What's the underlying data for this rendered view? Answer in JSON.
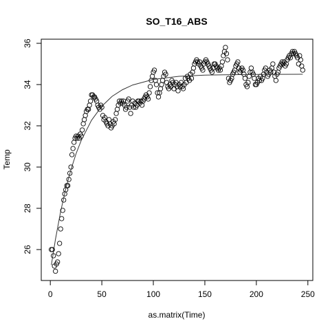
{
  "chart_data": {
    "type": "scatter",
    "title": "SO_T16_ABS",
    "x_label": "as.matrix(Time)",
    "y_label": "Temp",
    "xlim": [
      -8.8,
      254.8
    ],
    "ylim": [
      24.5,
      36.2
    ],
    "xticks": [
      0,
      50,
      100,
      150,
      200,
      250
    ],
    "yticks": [
      26,
      28,
      30,
      32,
      34,
      36
    ],
    "series": [
      {
        "mode": "points",
        "color": "#000000",
        "x": [
          1,
          2,
          3,
          4,
          5,
          6,
          7,
          8,
          9,
          10,
          11,
          12,
          13,
          14,
          15,
          16,
          17,
          18,
          19,
          20,
          21,
          22,
          23,
          24,
          25,
          26,
          27,
          28,
          29,
          30,
          31,
          32,
          33,
          34,
          35,
          36,
          37,
          38,
          39,
          40,
          41,
          42,
          43,
          44,
          45,
          46,
          47,
          48,
          49,
          50,
          51,
          52,
          53,
          54,
          55,
          56,
          57,
          58,
          59,
          60,
          61,
          62,
          63,
          64,
          65,
          66,
          67,
          68,
          69,
          70,
          71,
          72,
          73,
          74,
          75,
          76,
          77,
          78,
          79,
          80,
          81,
          82,
          83,
          84,
          85,
          86,
          87,
          88,
          89,
          90,
          91,
          92,
          93,
          94,
          95,
          96,
          97,
          98,
          99,
          100,
          101,
          102,
          103,
          104,
          105,
          106,
          107,
          108,
          109,
          110,
          111,
          112,
          113,
          114,
          115,
          116,
          117,
          118,
          119,
          120,
          121,
          122,
          123,
          124,
          125,
          126,
          127,
          128,
          129,
          130,
          131,
          132,
          133,
          134,
          135,
          136,
          137,
          138,
          139,
          140,
          141,
          142,
          143,
          144,
          145,
          146,
          147,
          148,
          149,
          150,
          151,
          152,
          153,
          154,
          155,
          156,
          157,
          158,
          159,
          160,
          161,
          162,
          163,
          164,
          165,
          166,
          167,
          168,
          169,
          170,
          171,
          172,
          173,
          174,
          175,
          176,
          177,
          178,
          179,
          180,
          181,
          182,
          183,
          184,
          185,
          186,
          187,
          188,
          189,
          190,
          191,
          192,
          193,
          194,
          195,
          196,
          197,
          198,
          199,
          200,
          201,
          202,
          203,
          204,
          205,
          206,
          207,
          208,
          209,
          210,
          211,
          212,
          213,
          214,
          215,
          216,
          217,
          218,
          219,
          220,
          221,
          222,
          223,
          224,
          225,
          226,
          227,
          228,
          229,
          230,
          231,
          232,
          233,
          234,
          235,
          236,
          237,
          238,
          239,
          240,
          241,
          242,
          243,
          244,
          245
        ],
        "values": [
          26.0,
          26.0,
          25.7,
          25.2,
          24.95,
          25.3,
          25.4,
          25.8,
          26.3,
          27.0,
          27.5,
          27.9,
          28.4,
          28.7,
          28.9,
          29.1,
          29.1,
          29.4,
          29.7,
          30.0,
          30.6,
          30.9,
          31.2,
          31.4,
          31.5,
          31.4,
          31.5,
          31.4,
          31.6,
          31.5,
          31.8,
          32.1,
          32.3,
          32.5,
          32.7,
          32.8,
          32.8,
          33.0,
          33.2,
          33.5,
          33.5,
          33.4,
          33.4,
          33.3,
          33.2,
          33.0,
          32.9,
          32.8,
          33.0,
          32.9,
          32.5,
          32.3,
          32.4,
          32.2,
          32.1,
          32.0,
          32.3,
          32.1,
          31.9,
          32.0,
          32.2,
          32.1,
          32.3,
          32.6,
          32.8,
          33.0,
          33.2,
          33.1,
          33.2,
          33.1,
          33.2,
          33.0,
          32.8,
          32.9,
          33.2,
          33.3,
          32.9,
          32.6,
          33.0,
          33.2,
          32.9,
          33.1,
          32.9,
          33.0,
          33.2,
          33.2,
          33.1,
          33.2,
          33.0,
          33.2,
          33.3,
          33.4,
          33.5,
          33.4,
          33.3,
          33.6,
          33.9,
          34.2,
          34.4,
          34.6,
          34.7,
          34.2,
          34.0,
          33.6,
          33.4,
          33.6,
          33.8,
          34.0,
          34.2,
          34.4,
          34.6,
          34.5,
          34.1,
          33.9,
          33.8,
          34.0,
          33.9,
          34.2,
          34.1,
          33.8,
          34.0,
          34.1,
          33.9,
          33.7,
          34.0,
          33.9,
          34.1,
          33.9,
          33.8,
          34.0,
          34.3,
          34.1,
          34.4,
          34.3,
          34.2,
          34.5,
          34.3,
          34.6,
          34.8,
          35.0,
          35.1,
          35.2,
          35.1,
          35.0,
          35.1,
          34.9,
          34.8,
          34.7,
          35.0,
          35.1,
          35.2,
          35.1,
          35.0,
          34.9,
          34.8,
          34.7,
          34.6,
          34.8,
          35.0,
          35.0,
          34.9,
          34.8,
          34.7,
          34.8,
          34.7,
          34.9,
          35.1,
          35.4,
          35.6,
          35.8,
          35.5,
          35.2,
          34.3,
          34.1,
          34.2,
          34.3,
          34.5,
          34.6,
          34.7,
          34.9,
          35.0,
          35.1,
          34.8,
          34.6,
          34.7,
          34.8,
          34.7,
          34.5,
          34.3,
          34.0,
          33.9,
          34.1,
          34.4,
          34.6,
          34.8,
          34.6,
          34.5,
          34.3,
          34.0,
          34.0,
          34.1,
          34.3,
          34.2,
          34.4,
          34.2,
          34.3,
          34.5,
          34.7,
          34.8,
          34.6,
          34.4,
          34.5,
          34.7,
          34.6,
          34.8,
          35.0,
          34.6,
          34.4,
          34.2,
          34.5,
          34.6,
          34.8,
          34.9,
          35.0,
          35.1,
          35.0,
          35.1,
          34.9,
          35.0,
          35.2,
          35.3,
          35.4,
          35.3,
          35.5,
          35.6,
          35.5,
          35.6,
          35.5,
          35.4,
          35.3,
          35.0,
          35.4,
          35.2,
          34.9,
          34.7
        ]
      },
      {
        "mode": "line",
        "color": "#333333",
        "x": [
          1,
          5,
          10,
          15,
          20,
          25,
          30,
          40,
          50,
          60,
          70,
          80,
          100,
          125,
          150,
          175,
          200,
          245
        ],
        "values": [
          25.25,
          26.5,
          27.84,
          28.95,
          29.87,
          30.65,
          31.29,
          32.27,
          32.95,
          33.43,
          33.75,
          33.98,
          34.25,
          34.4,
          34.46,
          34.48,
          34.49,
          34.5
        ]
      }
    ]
  }
}
